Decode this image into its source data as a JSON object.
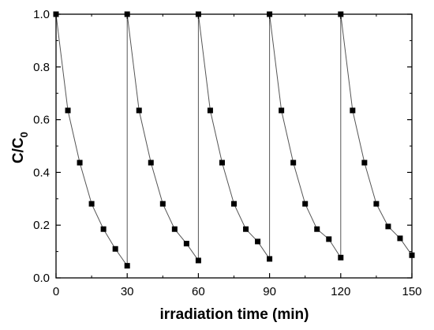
{
  "chart_data": {
    "type": "scatter",
    "title": "",
    "xlabel": "irradiation time (min)",
    "ylabel": {
      "main": "C/C",
      "subscript": "0"
    },
    "xlim": [
      0,
      150
    ],
    "ylim": [
      0.0,
      1.0
    ],
    "xticks": [
      0,
      30,
      60,
      90,
      120,
      150
    ],
    "yticks": [
      0.0,
      0.2,
      0.4,
      0.6,
      0.8,
      1.0
    ],
    "xtick_labels": [
      "0",
      "30",
      "60",
      "90",
      "120",
      "150"
    ],
    "ytick_labels": [
      "0.0",
      "0.2",
      "0.4",
      "0.6",
      "0.8",
      "1.0"
    ],
    "grid": false,
    "marker": "square",
    "connected": true,
    "colors": {
      "line": "#555555",
      "marker": "#000000",
      "axis": "#000000"
    },
    "series": [
      {
        "x": [
          0,
          5,
          10,
          15,
          20,
          25,
          30,
          30,
          35,
          40,
          45,
          50,
          55,
          60,
          60,
          65,
          70,
          75,
          80,
          85,
          90,
          90,
          95,
          100,
          105,
          110,
          115,
          120,
          120,
          125,
          130,
          135,
          140,
          145,
          150
        ],
        "y": [
          1.0,
          0.635,
          0.437,
          0.281,
          0.185,
          0.11,
          0.046,
          1.0,
          0.635,
          0.437,
          0.281,
          0.185,
          0.13,
          0.066,
          1.0,
          0.635,
          0.437,
          0.281,
          0.185,
          0.138,
          0.072,
          1.0,
          0.635,
          0.437,
          0.281,
          0.185,
          0.147,
          0.077,
          1.0,
          0.635,
          0.437,
          0.281,
          0.195,
          0.15,
          0.086
        ]
      }
    ]
  }
}
